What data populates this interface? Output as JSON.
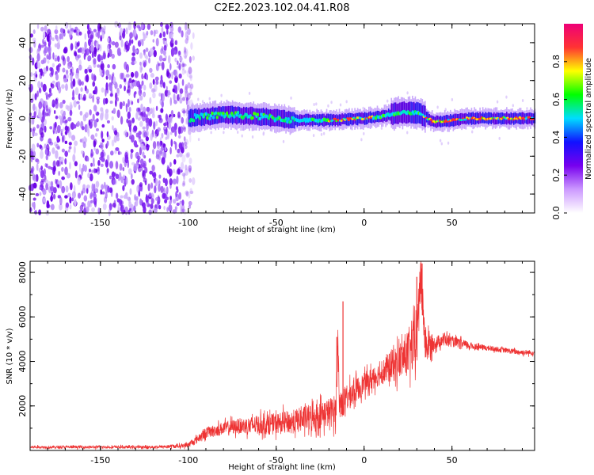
{
  "title": "C2E2.2023.102.04.41.R08",
  "chart_data": [
    {
      "type": "heatmap",
      "xlabel": "Height of straight line (km)",
      "ylabel": "Frequency (Hz)",
      "xlim": [
        -190,
        97
      ],
      "ylim": [
        -50,
        50
      ],
      "xticks": [
        -150,
        -100,
        -50,
        0,
        50
      ],
      "yticks": [
        -40,
        -20,
        0,
        20,
        40
      ],
      "noise_region_x": [
        -190,
        -100
      ],
      "signal_onset_x": -100,
      "ridge_center": [
        {
          "x": -100,
          "y": 0
        },
        {
          "x": -80,
          "y": 2
        },
        {
          "x": -60,
          "y": 1
        },
        {
          "x": -40,
          "y": -1
        },
        {
          "x": -20,
          "y": -1
        },
        {
          "x": 0,
          "y": 0
        },
        {
          "x": 10,
          "y": 1
        },
        {
          "x": 20,
          "y": 3
        },
        {
          "x": 30,
          "y": 3
        },
        {
          "x": 40,
          "y": -2
        },
        {
          "x": 50,
          "y": -1
        },
        {
          "x": 60,
          "y": 0
        },
        {
          "x": 97,
          "y": 0
        }
      ],
      "colorbar": {
        "label": "Normalized spectral amplitude",
        "range": [
          0,
          1
        ],
        "ticks": [
          0.0,
          0.2,
          0.4,
          0.6,
          0.8
        ],
        "colors": [
          "#ffffff",
          "#cc99ff",
          "#7700ee",
          "#1111ff",
          "#00ddff",
          "#00ff00",
          "#ffff00",
          "#ff3333",
          "#ee0077"
        ]
      }
    },
    {
      "type": "line",
      "xlabel": "Height of straight line (km)",
      "ylabel": "SNR (10 * v/v)",
      "xlim": [
        -190,
        97
      ],
      "ylim": [
        0,
        8500
      ],
      "xticks": [
        -150,
        -100,
        -50,
        0,
        50
      ],
      "yticks": [
        2000,
        4000,
        6000,
        8000
      ],
      "line_color": "#ee3333",
      "series": [
        {
          "x": [
            -190,
            -150,
            -120,
            -105,
            -100,
            -95,
            -90,
            -80,
            -70,
            -60,
            -50,
            -40,
            -30,
            -20,
            -16,
            -15,
            -14,
            -12,
            -10,
            -5,
            0,
            10,
            20,
            25,
            30,
            32,
            35,
            40,
            45,
            50,
            60,
            70,
            80,
            90,
            97
          ],
          "y": [
            150,
            150,
            150,
            200,
            250,
            500,
            800,
            1000,
            1100,
            1150,
            1200,
            1300,
            1500,
            1700,
            1800,
            5100,
            2000,
            2200,
            2300,
            2700,
            3000,
            3500,
            4000,
            4400,
            4800,
            8000,
            4700,
            4800,
            5000,
            4900,
            4700,
            4600,
            4500,
            4400,
            4400
          ],
          "spread": [
            100,
            100,
            100,
            150,
            200,
            300,
            400,
            500,
            600,
            700,
            800,
            900,
            1000,
            1100,
            1200,
            1200,
            1200,
            1100,
            1000,
            900,
            800,
            900,
            1400,
            1800,
            2200,
            2000,
            1500,
            500,
            500,
            400,
            300,
            200,
            200,
            200,
            200
          ],
          "spikes": [
            {
              "x": -15.5,
              "y": 5100
            },
            {
              "x": -12,
              "y": 6700
            },
            {
              "x": 30,
              "y": 7800
            },
            {
              "x": 33,
              "y": 8400
            }
          ]
        }
      ]
    }
  ]
}
